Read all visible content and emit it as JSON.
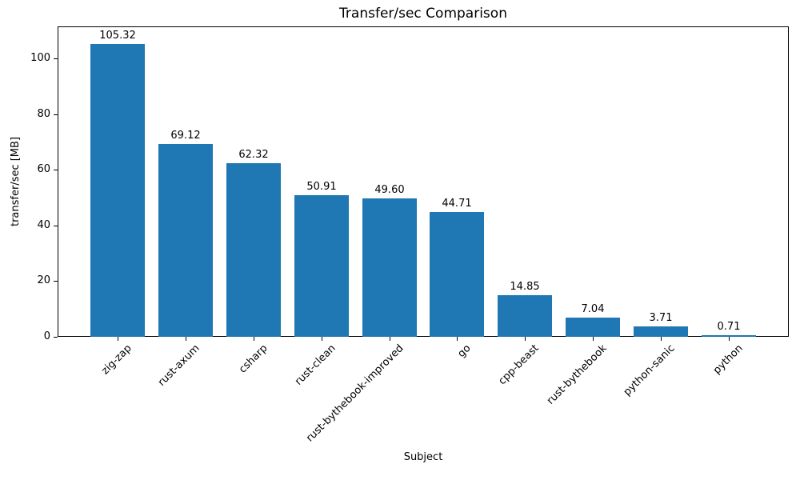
{
  "chart_data": {
    "type": "bar",
    "title": "Transfer/sec Comparison",
    "xlabel": "Subject",
    "ylabel": "transfer/sec [MB]",
    "categories": [
      "zig-zap",
      "rust-axum",
      "csharp",
      "rust-clean",
      "rust-bythebook-improved",
      "go",
      "cpp-beast",
      "rust-bythebook",
      "python-sanic",
      "python"
    ],
    "values": [
      105.32,
      69.12,
      62.32,
      50.91,
      49.6,
      44.71,
      14.85,
      7.04,
      3.71,
      0.71
    ],
    "value_labels": [
      "105.32",
      "69.12",
      "62.32",
      "50.91",
      "49.60",
      "44.71",
      "14.85",
      "7.04",
      "3.71",
      "0.71"
    ],
    "yticks": [
      0,
      20,
      40,
      60,
      80,
      100
    ],
    "ylim": [
      0,
      111.5
    ],
    "bar_color": "#1f77b4",
    "grid": false,
    "legend_position": "none"
  }
}
